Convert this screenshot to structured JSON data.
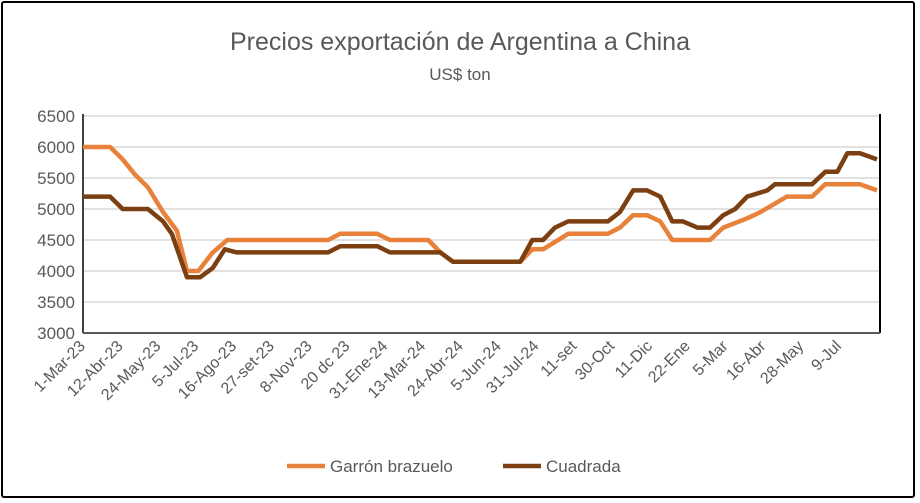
{
  "chart_data": {
    "type": "line",
    "title": "Precios exportación de Argentina a China",
    "subtitle": "US$ ton",
    "xlabel": "",
    "ylabel": "",
    "ylim": [
      3000,
      6500
    ],
    "yticks": [
      3000,
      3500,
      4000,
      4500,
      5000,
      5500,
      6000,
      6500
    ],
    "xlim": [
      0,
      126
    ],
    "xtick_labels": [
      "1-Mar-23",
      "12-Abr-23",
      "24-May-23",
      "5-Jul-23",
      "16-Ago-23",
      "27-set-23",
      "8-Nov-23",
      "20 dc 23",
      "31-Ene-24",
      "13-Mar-24",
      "24-Abr-24",
      "5-Jun-24",
      "31-Jul-24",
      "11-set",
      "30-Oct",
      "11-Dic",
      "22-Ene",
      "5-Mar",
      "16-Abr",
      "28-May",
      "9-Jul"
    ],
    "grid": true,
    "legend_position": "bottom",
    "series": [
      {
        "name": "Garrón brazuelo",
        "color": "#E8823A",
        "points": [
          [
            0,
            6000
          ],
          [
            4.3,
            6000
          ],
          [
            6.3,
            5800
          ],
          [
            8.3,
            5550
          ],
          [
            10.3,
            5350
          ],
          [
            12.7,
            4950
          ],
          [
            14.9,
            4650
          ],
          [
            16.5,
            4000
          ],
          [
            18.3,
            4000
          ],
          [
            20.6,
            4300
          ],
          [
            22.9,
            4500
          ],
          [
            38.9,
            4500
          ],
          [
            40.8,
            4600
          ],
          [
            46.7,
            4600
          ],
          [
            48.7,
            4500
          ],
          [
            54.8,
            4500
          ],
          [
            56.7,
            4300
          ],
          [
            58.7,
            4150
          ],
          [
            69.4,
            4150
          ],
          [
            71.3,
            4350
          ],
          [
            73,
            4350
          ],
          [
            77,
            4600
          ],
          [
            83.3,
            4600
          ],
          [
            85.2,
            4700
          ],
          [
            87.3,
            4900
          ],
          [
            89.5,
            4900
          ],
          [
            91.6,
            4800
          ],
          [
            93.5,
            4500
          ],
          [
            99.5,
            4500
          ],
          [
            101.6,
            4700
          ],
          [
            105.4,
            4850
          ],
          [
            107.5,
            4950
          ],
          [
            111.7,
            5200
          ],
          [
            115.7,
            5200
          ],
          [
            117.8,
            5400
          ],
          [
            123.3,
            5400
          ],
          [
            126,
            5300
          ]
        ]
      },
      {
        "name": "Cuadrada",
        "color": "#7B3F12",
        "points": [
          [
            0,
            5200
          ],
          [
            4.3,
            5200
          ],
          [
            6.3,
            5000
          ],
          [
            10.3,
            5000
          ],
          [
            12.7,
            4800
          ],
          [
            14.1,
            4600
          ],
          [
            16.5,
            3900
          ],
          [
            18.6,
            3900
          ],
          [
            20.6,
            4050
          ],
          [
            22.5,
            4350
          ],
          [
            24.4,
            4300
          ],
          [
            38.9,
            4300
          ],
          [
            40.8,
            4400
          ],
          [
            46.7,
            4400
          ],
          [
            48.7,
            4300
          ],
          [
            56.7,
            4300
          ],
          [
            58.7,
            4150
          ],
          [
            69.4,
            4150
          ],
          [
            71.3,
            4500
          ],
          [
            73,
            4500
          ],
          [
            74.9,
            4700
          ],
          [
            77,
            4800
          ],
          [
            83.3,
            4800
          ],
          [
            85.2,
            4950
          ],
          [
            87.3,
            5300
          ],
          [
            89.5,
            5300
          ],
          [
            91.6,
            5200
          ],
          [
            93.5,
            4800
          ],
          [
            95.2,
            4800
          ],
          [
            97.5,
            4700
          ],
          [
            99.5,
            4700
          ],
          [
            101.6,
            4900
          ],
          [
            103.5,
            5000
          ],
          [
            105.4,
            5200
          ],
          [
            108.6,
            5300
          ],
          [
            109.8,
            5400
          ],
          [
            115.7,
            5400
          ],
          [
            117.8,
            5600
          ],
          [
            119.7,
            5600
          ],
          [
            121.3,
            5900
          ],
          [
            123.3,
            5900
          ],
          [
            126,
            5800
          ]
        ]
      }
    ]
  }
}
